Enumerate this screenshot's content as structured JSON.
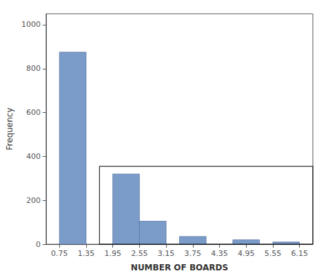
{
  "chart_data": {
    "type": "bar",
    "x": [
      1.05,
      2.25,
      2.85,
      3.75,
      4.95,
      5.85
    ],
    "values": [
      875,
      320,
      105,
      35,
      20,
      10
    ],
    "widths": [
      0.6,
      0.6,
      0.6,
      0.6,
      0.6,
      0.6
    ],
    "color": "#7b9cc9",
    "xlim": [
      0.45,
      6.45
    ],
    "ylim": [
      0,
      1050
    ],
    "xticks": [
      0.75,
      1.35,
      1.95,
      2.55,
      3.15,
      3.75,
      4.35,
      4.95,
      5.55,
      6.15
    ],
    "yticks": [
      0,
      200,
      400,
      600,
      800,
      1000
    ],
    "xlabel": "NUMBER OF BOARDS",
    "ylabel": "Frequency",
    "grid": false,
    "box": {
      "x": [
        1.65,
        6.45
      ],
      "y": [
        0,
        355
      ],
      "color": "black"
    }
  }
}
